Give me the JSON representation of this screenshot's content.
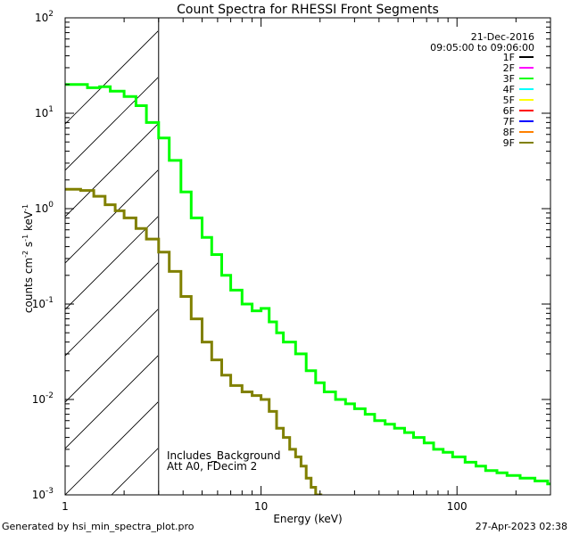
{
  "chart_data": {
    "type": "line",
    "title": "Count Spectra for RHESSI Front Segments",
    "xlabel": "Energy (keV)",
    "ylabel": "counts cm",
    "ylabel_parts": {
      "base": "counts cm",
      "e1": "-2",
      "s": " s",
      "e2": "-1",
      "kev": " keV",
      "e3": "-1"
    },
    "x_scale": "log",
    "y_scale": "log",
    "xlim": [
      1,
      300
    ],
    "ylim": [
      0.001,
      100
    ],
    "x_tick_labels": [
      {
        "value": 1,
        "label": "1"
      },
      {
        "value": 10,
        "label": "10"
      },
      {
        "value": 100,
        "label": "100"
      }
    ],
    "y_tick_labels": [
      {
        "value": 100,
        "base": "10",
        "exp": "2"
      },
      {
        "value": 10,
        "base": "10",
        "exp": "1"
      },
      {
        "value": 1,
        "base": "10",
        "exp": "0"
      },
      {
        "value": 0.1,
        "base": "10",
        "exp": "-1"
      },
      {
        "value": 0.01,
        "base": "10",
        "exp": "-2"
      },
      {
        "value": 0.001,
        "base": "10",
        "exp": "-3"
      }
    ],
    "attenuator_cutoff_keV": 3,
    "date": "21-Dec-2016",
    "time_range": "09:05:00 to 09:06:00",
    "annotations": [
      "Includes_Background",
      "Att A0, FDecim 2"
    ],
    "legend": [
      {
        "label": "1F",
        "color": "#000000"
      },
      {
        "label": "2F",
        "color": "#ff00ff"
      },
      {
        "label": "3F",
        "color": "#00ff00"
      },
      {
        "label": "4F",
        "color": "#00ffff"
      },
      {
        "label": "5F",
        "color": "#ffff00"
      },
      {
        "label": "6F",
        "color": "#ff0000"
      },
      {
        "label": "7F",
        "color": "#0000ff"
      },
      {
        "label": "8F",
        "color": "#ff8000"
      },
      {
        "label": "9F",
        "color": "#808000"
      }
    ],
    "series": [
      {
        "name": "3F",
        "color": "#00ff00",
        "points": [
          [
            1.0,
            20
          ],
          [
            1.15,
            20
          ],
          [
            1.3,
            18.5
          ],
          [
            1.5,
            19
          ],
          [
            1.7,
            17
          ],
          [
            2.0,
            15
          ],
          [
            2.3,
            12
          ],
          [
            2.6,
            8
          ],
          [
            3.0,
            5.5
          ],
          [
            3.4,
            3.2
          ],
          [
            3.9,
            1.5
          ],
          [
            4.4,
            0.8
          ],
          [
            5.0,
            0.5
          ],
          [
            5.6,
            0.33
          ],
          [
            6.3,
            0.2
          ],
          [
            7.0,
            0.14
          ],
          [
            8.0,
            0.1
          ],
          [
            9.0,
            0.085
          ],
          [
            10.0,
            0.09
          ],
          [
            11.0,
            0.065
          ],
          [
            12.0,
            0.05
          ],
          [
            13.0,
            0.04
          ],
          [
            15.0,
            0.03
          ],
          [
            17.0,
            0.02
          ],
          [
            19.0,
            0.015
          ],
          [
            21.0,
            0.012
          ],
          [
            24.0,
            0.01
          ],
          [
            27.0,
            0.009
          ],
          [
            30.0,
            0.008
          ],
          [
            34.0,
            0.007
          ],
          [
            38.0,
            0.006
          ],
          [
            43.0,
            0.0055
          ],
          [
            48.0,
            0.005
          ],
          [
            54.0,
            0.0045
          ],
          [
            60.0,
            0.004
          ],
          [
            68.0,
            0.0035
          ],
          [
            76.0,
            0.003
          ],
          [
            85.0,
            0.0028
          ],
          [
            95.0,
            0.0025
          ],
          [
            110.0,
            0.0022
          ],
          [
            125.0,
            0.002
          ],
          [
            140.0,
            0.0018
          ],
          [
            160.0,
            0.0017
          ],
          [
            180.0,
            0.0016
          ],
          [
            210.0,
            0.0015
          ],
          [
            250.0,
            0.0014
          ],
          [
            290.0,
            0.0013
          ]
        ]
      },
      {
        "name": "9F",
        "color": "#808000",
        "points": [
          [
            1.0,
            1.6
          ],
          [
            1.2,
            1.55
          ],
          [
            1.4,
            1.35
          ],
          [
            1.6,
            1.1
          ],
          [
            1.8,
            0.95
          ],
          [
            2.0,
            0.8
          ],
          [
            2.3,
            0.62
          ],
          [
            2.6,
            0.48
          ],
          [
            3.0,
            0.35
          ],
          [
            3.4,
            0.22
          ],
          [
            3.9,
            0.12
          ],
          [
            4.4,
            0.07
          ],
          [
            5.0,
            0.04
          ],
          [
            5.6,
            0.026
          ],
          [
            6.3,
            0.018
          ],
          [
            7.0,
            0.014
          ],
          [
            8.0,
            0.012
          ],
          [
            9.0,
            0.011
          ],
          [
            10.0,
            0.01
          ],
          [
            11.0,
            0.0075
          ],
          [
            12.0,
            0.005
          ],
          [
            13.0,
            0.004
          ],
          [
            14.0,
            0.003
          ],
          [
            15.0,
            0.0025
          ],
          [
            16.0,
            0.002
          ],
          [
            17.0,
            0.0015
          ],
          [
            18.0,
            0.0012
          ],
          [
            19.0,
            0.001
          ]
        ]
      }
    ]
  },
  "footer": {
    "left": "Generated by hsi_min_spectra_plot.pro",
    "right": "27-Apr-2023 02:38"
  }
}
